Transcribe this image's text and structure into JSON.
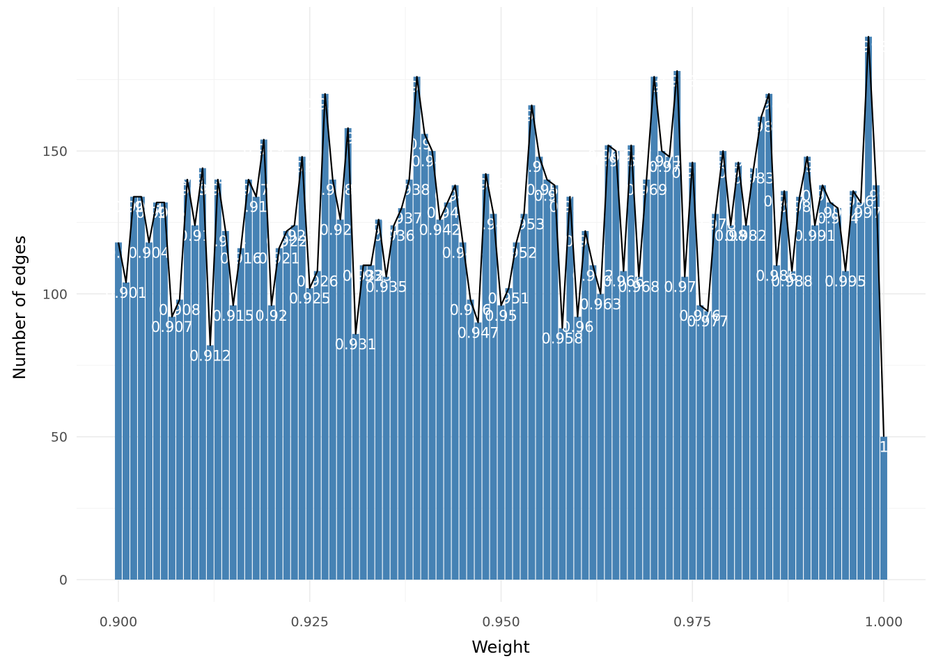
{
  "chart_data": {
    "type": "bar",
    "xlabel": "Weight",
    "ylabel": "Number of edges",
    "xlim": [
      0.8975,
      1.0025
    ],
    "ylim": [
      0,
      190
    ],
    "x_ticks": [
      {
        "value": 0.9,
        "label": "0.900"
      },
      {
        "value": 0.925,
        "label": "0.925"
      },
      {
        "value": 0.95,
        "label": "0.950"
      },
      {
        "value": 0.975,
        "label": "0.975"
      },
      {
        "value": 1.0,
        "label": "1.000"
      }
    ],
    "y_ticks": [
      {
        "value": 0,
        "label": "0"
      },
      {
        "value": 50,
        "label": "50"
      },
      {
        "value": 100,
        "label": "100"
      },
      {
        "value": 150,
        "label": "150"
      }
    ],
    "x_minor": [
      0.9125,
      0.9375,
      0.9625,
      0.9875
    ],
    "y_minor": [
      25,
      75,
      125,
      175
    ],
    "grid": true,
    "legend": "none",
    "bar_color": "#4682b4",
    "label_color": "#ffffff",
    "line_color": "#000000",
    "x": [
      0.9,
      0.901,
      0.902,
      0.903,
      0.904,
      0.905,
      0.906,
      0.907,
      0.908,
      0.909,
      0.91,
      0.911,
      0.912,
      0.913,
      0.914,
      0.915,
      0.916,
      0.917,
      0.918,
      0.919,
      0.92,
      0.921,
      0.922,
      0.923,
      0.924,
      0.925,
      0.926,
      0.927,
      0.928,
      0.929,
      0.93,
      0.931,
      0.932,
      0.933,
      0.934,
      0.935,
      0.936,
      0.937,
      0.938,
      0.939,
      0.94,
      0.941,
      0.942,
      0.943,
      0.944,
      0.945,
      0.946,
      0.947,
      0.948,
      0.949,
      0.95,
      0.951,
      0.952,
      0.953,
      0.954,
      0.955,
      0.956,
      0.957,
      0.958,
      0.959,
      0.96,
      0.961,
      0.962,
      0.963,
      0.964,
      0.965,
      0.966,
      0.967,
      0.968,
      0.969,
      0.97,
      0.971,
      0.972,
      0.973,
      0.974,
      0.975,
      0.976,
      0.977,
      0.978,
      0.979,
      0.98,
      0.981,
      0.982,
      0.983,
      0.984,
      0.985,
      0.986,
      0.987,
      0.988,
      0.989,
      0.99,
      0.991,
      0.992,
      0.993,
      0.994,
      0.995,
      0.996,
      0.997,
      0.998,
      0.999,
      1.0
    ],
    "values": [
      118,
      104,
      134,
      134,
      118,
      132,
      132,
      92,
      98,
      140,
      124,
      144,
      82,
      140,
      122,
      96,
      116,
      140,
      134,
      154,
      96,
      116,
      122,
      124,
      148,
      102,
      108,
      170,
      140,
      126,
      158,
      86,
      110,
      110,
      126,
      106,
      124,
      130,
      140,
      176,
      156,
      150,
      126,
      132,
      138,
      118,
      98,
      90,
      142,
      128,
      96,
      102,
      118,
      128,
      166,
      148,
      140,
      138,
      88,
      134,
      92,
      122,
      110,
      100,
      152,
      150,
      108,
      152,
      106,
      140,
      176,
      150,
      148,
      178,
      106,
      146,
      96,
      94,
      128,
      150,
      124,
      146,
      124,
      144,
      162,
      170,
      110,
      136,
      108,
      134,
      148,
      124,
      138,
      132,
      130,
      108,
      136,
      132,
      190,
      138,
      50
    ],
    "labels": [
      "0.9",
      "0.901",
      "0.902",
      "0.903",
      "0.904",
      "0.905",
      "0.906",
      "0.907",
      "0.908",
      "0.909",
      "0.91",
      "0.911",
      "0.912",
      "0.913",
      "0.914",
      "0.915",
      "0.916",
      "0.917",
      "0.918",
      "0.919",
      "0.92",
      "0.921",
      "0.922",
      "0.923",
      "0.924",
      "0.925",
      "0.926",
      "0.927",
      "0.928",
      "0.929",
      "0.93",
      "0.931",
      "0.932",
      "0.933",
      "0.934",
      "0.935",
      "0.936",
      "0.937",
      "0.938",
      "0.939",
      "0.94",
      "0.941",
      "0.942",
      "0.943",
      "0.944",
      "0.945",
      "0.946",
      "0.947",
      "0.948",
      "0.949",
      "0.95",
      "0.951",
      "0.952",
      "0.953",
      "0.954",
      "0.955",
      "0.956",
      "0.957",
      "0.958",
      "0.959",
      "0.96",
      "0.961",
      "0.962",
      "0.963",
      "0.964",
      "0.965",
      "0.966",
      "0.967",
      "0.968",
      "0.969",
      "0.97",
      "0.971",
      "0.972",
      "0.973",
      "0.974",
      "0.975",
      "0.976",
      "0.977",
      "0.978",
      "0.979",
      "0.98",
      "0.981",
      "0.982",
      "0.983",
      "0.984",
      "0.985",
      "0.986",
      "0.987",
      "0.988",
      "0.989",
      "0.99",
      "0.991",
      "0.992",
      "0.993",
      "0.994",
      "0.995",
      "0.996",
      "0.997",
      "0.998",
      "0.999",
      "1"
    ]
  }
}
